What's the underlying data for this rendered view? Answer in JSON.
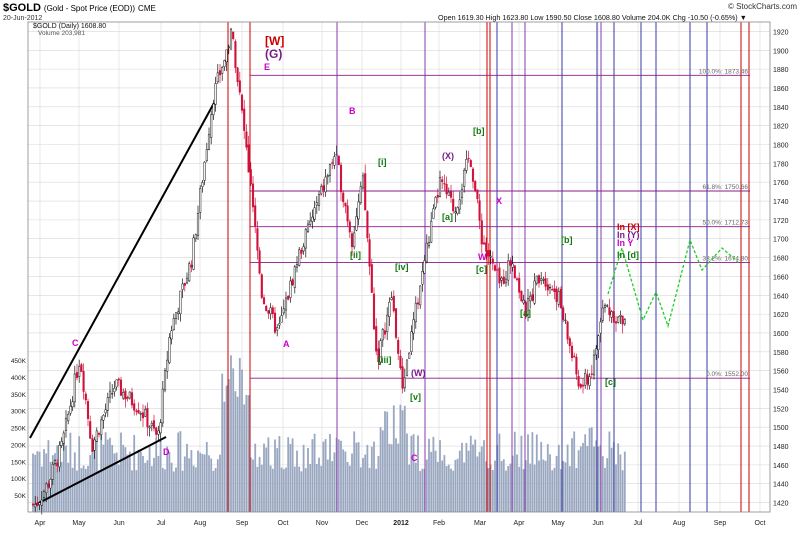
{
  "header": {
    "symbol": "$GOLD",
    "description": "(Gold - Spot Price (EOD))",
    "exchange": "CME",
    "watermark": "© StockCharts.com",
    "date": "20-Jun-2012",
    "ohlc": "Open 1619.30  High 1623.80  Low 1590.50  Close 1608.80  Volume 204.0K  Chg -10.50 (-0.65%) ▼",
    "legend_price": "$GOLD (Daily) 1608.80",
    "legend_volume": "Volume 203,981"
  },
  "colors": {
    "grid": "#d8d8d8",
    "up_candle": "#111111",
    "down_candle": "#d0103a",
    "volume": "#9aa7c0",
    "fib_line": "#8b1a8b",
    "time_line_red": "#cc0000",
    "time_line_blue": "#3a3aa8",
    "time_line_purple": "#8a3ab0",
    "projection": "#22cc22"
  },
  "chart_data": {
    "type": "candlestick",
    "title": "$GOLD (Gold - Spot Price (EOD)) CME",
    "y_ticks": [
      1420,
      1440,
      1460,
      1480,
      1500,
      1520,
      1540,
      1560,
      1580,
      1600,
      1620,
      1640,
      1660,
      1680,
      1700,
      1720,
      1740,
      1760,
      1780,
      1800,
      1820,
      1840,
      1860,
      1880,
      1900,
      1920
    ],
    "ylim": [
      1410,
      1930
    ],
    "x_ticks": [
      "Apr",
      "May",
      "Jun",
      "Jul",
      "Aug",
      "Sep",
      "Oct",
      "Nov",
      "Dec",
      "2012",
      "Feb",
      "Mar",
      "Apr",
      "May",
      "Jun",
      "Jul",
      "Aug",
      "Sep",
      "Oct"
    ],
    "volume_ticks": [
      "50K",
      "100K",
      "150K",
      "200K",
      "250K",
      "300K",
      "350K",
      "400K",
      "450K"
    ],
    "volume_ylim": [
      0,
      450000
    ],
    "price_path": [
      {
        "x": "Mar 2011",
        "y": 1418
      },
      {
        "x": "Apr 2011",
        "y": 1440
      },
      {
        "x": "Apr 2011",
        "y": 1480
      },
      {
        "x": "May 2011",
        "y": 1575
      },
      {
        "x": "May 2011",
        "y": 1480
      },
      {
        "x": "Jun 2011",
        "y": 1545
      },
      {
        "x": "Jun 2011",
        "y": 1520
      },
      {
        "x": "Jul 2011",
        "y": 1488
      },
      {
        "x": "Jul 2011",
        "y": 1600
      },
      {
        "x": "Aug 2011",
        "y": 1680
      },
      {
        "x": "Aug 2011",
        "y": 1850
      },
      {
        "x": "Sep 2011",
        "y": 1920
      },
      {
        "x": "Sep 2011",
        "y": 1780
      },
      {
        "x": "Sep 2011",
        "y": 1640
      },
      {
        "x": "Oct 2011",
        "y": 1600
      },
      {
        "x": "Oct 2011",
        "y": 1680
      },
      {
        "x": "Nov 2011",
        "y": 1790
      },
      {
        "x": "Nov 2011",
        "y": 1700
      },
      {
        "x": "Nov 2011",
        "y": 1760
      },
      {
        "x": "Dec 2011",
        "y": 1570
      },
      {
        "x": "Dec 2011",
        "y": 1640
      },
      {
        "x": "Dec 2011",
        "y": 1540
      },
      {
        "x": "Jan 2012",
        "y": 1600
      },
      {
        "x": "Jan 2012",
        "y": 1680
      },
      {
        "x": "Feb 2012",
        "y": 1760
      },
      {
        "x": "Feb 2012",
        "y": 1730
      },
      {
        "x": "Feb 2012",
        "y": 1790
      },
      {
        "x": "Mar 2012",
        "y": 1700
      },
      {
        "x": "Mar 2012",
        "y": 1650
      },
      {
        "x": "Apr 2012",
        "y": 1680
      },
      {
        "x": "Apr 2012",
        "y": 1620
      },
      {
        "x": "Apr 2012",
        "y": 1665
      },
      {
        "x": "May 2012",
        "y": 1640
      },
      {
        "x": "May 2012",
        "y": 1540
      },
      {
        "x": "Jun 2012",
        "y": 1560
      },
      {
        "x": "Jun 2012",
        "y": 1630
      },
      {
        "x": "Jun 2012",
        "y": 1608.8
      }
    ],
    "fib_levels": [
      {
        "label": "100.0%: 1873.46",
        "value": 1873.46
      },
      {
        "label": "61.8%: 1750.66",
        "value": 1750.66
      },
      {
        "label": "50.0%: 1712.73",
        "value": 1712.73
      },
      {
        "label": "38.2%: 1674.80",
        "value": 1674.8
      },
      {
        "label": "0.0%: 1552.00",
        "value": 1552.0
      }
    ],
    "wave_labels": [
      {
        "text": "C",
        "color": "#cc00cc"
      },
      {
        "text": "D",
        "color": "#cc00cc"
      },
      {
        "text": "E",
        "color": "#cc00cc"
      },
      {
        "text": "A",
        "color": "#cc00cc"
      },
      {
        "text": "B",
        "color": "#cc00cc"
      },
      {
        "text": "C",
        "color": "#cc00cc"
      },
      {
        "text": "[W]",
        "color": "#cc0000"
      },
      {
        "text": "(G)",
        "color": "#7a1a8a"
      },
      {
        "text": "[i]",
        "color": "#117a11"
      },
      {
        "text": "[ii]",
        "color": "#117a11"
      },
      {
        "text": "[iii]",
        "color": "#117a11"
      },
      {
        "text": "[iv]",
        "color": "#117a11"
      },
      {
        "text": "[v]",
        "color": "#117a11"
      },
      {
        "text": "(W)",
        "color": "#7a1a8a"
      },
      {
        "text": "(X)",
        "color": "#7a1a8a"
      },
      {
        "text": "[a]",
        "color": "#117a11"
      },
      {
        "text": "[b]",
        "color": "#117a11"
      },
      {
        "text": "[c]",
        "color": "#117a11"
      },
      {
        "text": "W",
        "color": "#cc00cc"
      },
      {
        "text": "X",
        "color": "#cc00cc"
      },
      {
        "text": "[a]",
        "color": "#117a11"
      },
      {
        "text": "[b]",
        "color": "#117a11"
      },
      {
        "text": "[c]",
        "color": "#117a11"
      },
      {
        "text": "In [X]",
        "color": "#cc0000"
      },
      {
        "text": "In (Y)",
        "color": "#7a1a8a"
      },
      {
        "text": "In Y",
        "color": "#cc00cc"
      },
      {
        "text": "In [d]",
        "color": "#117a11"
      }
    ]
  }
}
